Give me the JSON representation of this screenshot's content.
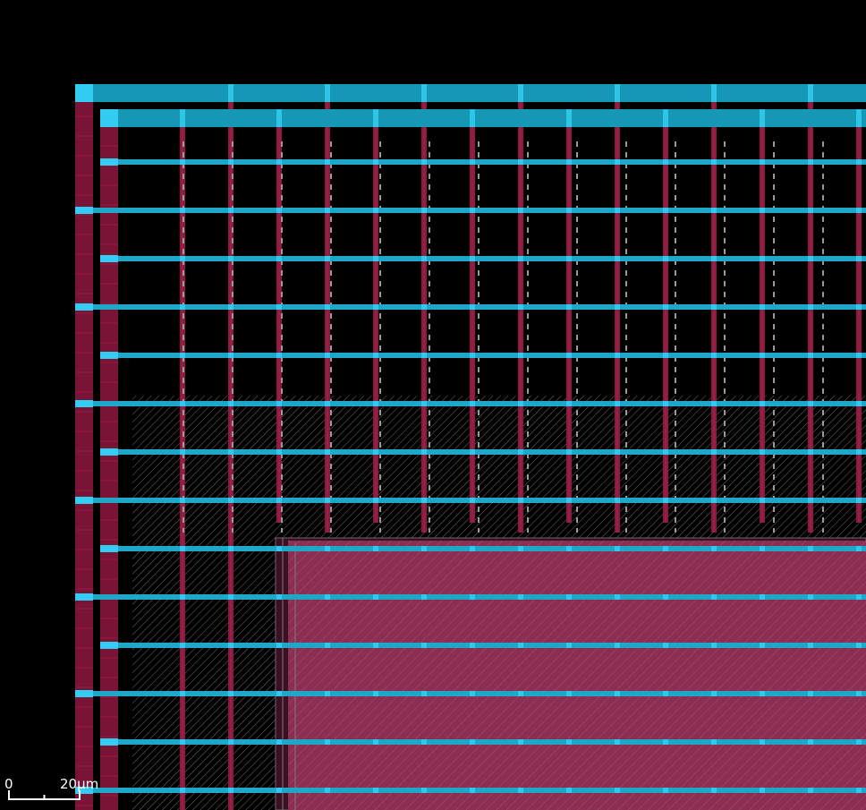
{
  "scale_bar": {
    "start_label": "0",
    "end_label": "20μm"
  },
  "colors": {
    "background": "#000000",
    "metal_horizontal": "#1697b6",
    "metal_horizontal_cap": "#33ccf2",
    "metal_vertical": "#7a1436",
    "metal_vertical_stripe": "#a81e4e",
    "macro_fill": "#8a2f52",
    "via_dash": "#9a9a9a",
    "hatch": "#ffffff",
    "scale_bar": "#ffffff"
  },
  "layers": [
    {
      "name": "power-ring-horizontal",
      "color": "#1697b6"
    },
    {
      "name": "power-ring-vertical",
      "color": "#7a1436"
    },
    {
      "name": "power-stripes-horizontal",
      "color": "#33ccf2"
    },
    {
      "name": "power-stripes-vertical",
      "color": "#a81e4e"
    },
    {
      "name": "macro-block",
      "color": "#8a2f52"
    },
    {
      "name": "standard-cell-area-hatch",
      "color": "#ffffff"
    }
  ]
}
